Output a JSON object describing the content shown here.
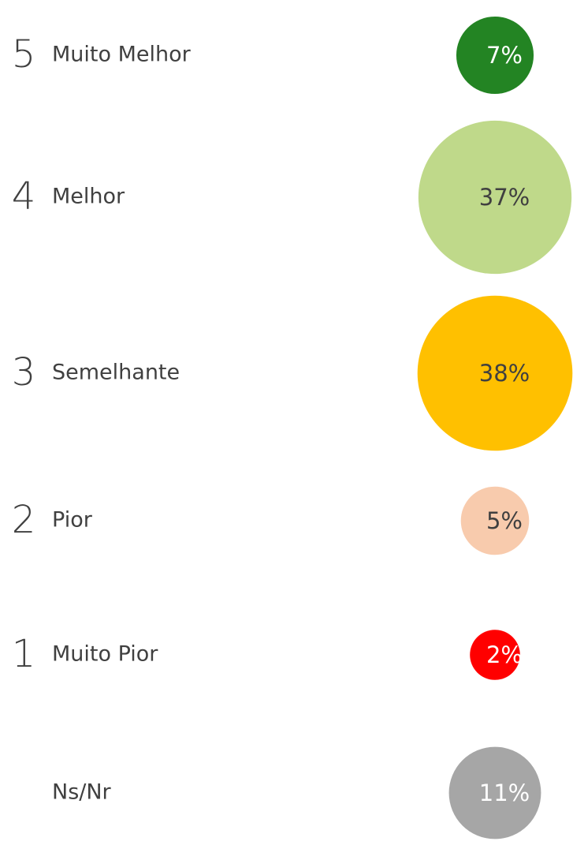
{
  "chart_data": {
    "type": "bubble",
    "ranks": [
      "5",
      "4",
      "3",
      "2",
      "1",
      null
    ],
    "categories": [
      "Muito Melhor",
      "Melhor",
      "Semelhante",
      "Pior",
      "Muito Pior",
      "Ns/Nr"
    ],
    "values": [
      7,
      37,
      38,
      5,
      2,
      11
    ],
    "value_labels": [
      "7%",
      "37%",
      "38%",
      "5%",
      "2%",
      "11%"
    ],
    "colors": [
      "#238423",
      "#bfd98a",
      "#ffc000",
      "#f8cbad",
      "#ff0000",
      "#a6a6a6"
    ]
  }
}
